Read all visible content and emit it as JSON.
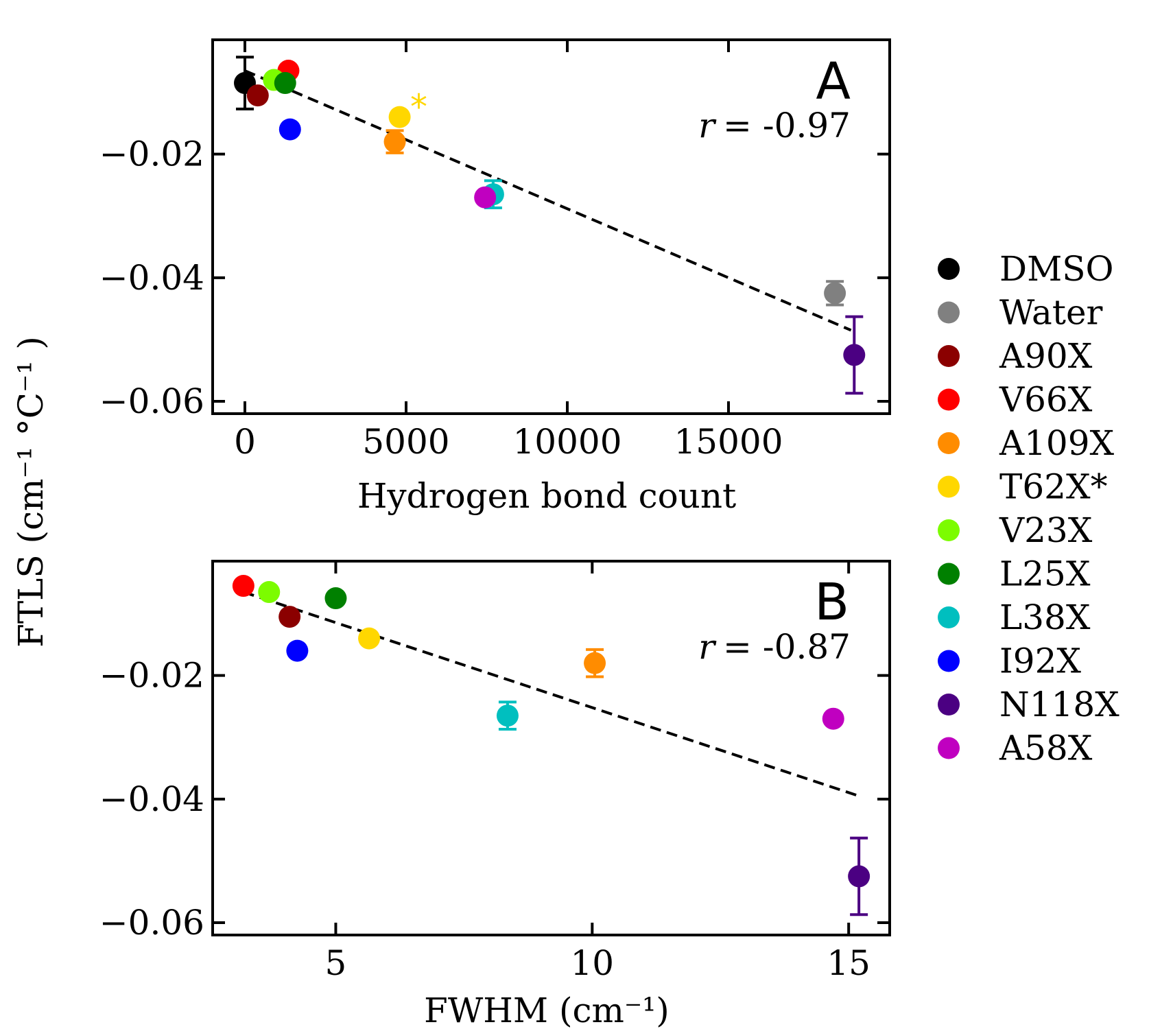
{
  "legend": [
    {
      "name": "DMSO",
      "color": "#000000"
    },
    {
      "name": "Water",
      "color": "#808080"
    },
    {
      "name": "A90X",
      "color": "#8b0000"
    },
    {
      "name": "V66X",
      "color": "#ff0000"
    },
    {
      "name": "A109X",
      "color": "#ff8c00"
    },
    {
      "name": "T62X*",
      "color": "#ffd700"
    },
    {
      "name": "V23X",
      "color": "#7cfc00"
    },
    {
      "name": "L25X",
      "color": "#008000"
    },
    {
      "name": "L38X",
      "color": "#00bfbf"
    },
    {
      "name": "I92X",
      "color": "#0000ff"
    },
    {
      "name": "N118X",
      "color": "#4b0082"
    },
    {
      "name": "A58X",
      "color": "#c000c0"
    }
  ],
  "shared_ylabel": "FTLS (cm⁻¹ °C⁻¹ )",
  "chart_data": [
    {
      "type": "scatter",
      "panel_label": "A",
      "annotation": "r = -0.97",
      "r_symbol": "r",
      "r_value": "= -0.97",
      "xlabel": "Hydrogen bond count",
      "xlim": [
        -1000,
        20000
      ],
      "ylim": [
        -0.062,
        -0.0015
      ],
      "xticks": [
        0,
        5000,
        10000,
        15000
      ],
      "xtick_labels": [
        "0",
        "5000",
        "10000",
        "15000"
      ],
      "yticks": [
        -0.02,
        -0.04,
        -0.06
      ],
      "ytick_labels": [
        "−0.02",
        "−0.04",
        "−0.06"
      ],
      "fit_line": {
        "x": [
          0,
          18800
        ],
        "y": [
          -0.0065,
          -0.0485
        ],
        "style": "dashed"
      },
      "starred_point": {
        "series": "T62X*",
        "mark": "*"
      },
      "points": [
        {
          "series": "DMSO",
          "x": 0,
          "y": -0.0085,
          "err": 0.0042
        },
        {
          "series": "Water",
          "x": 18300,
          "y": -0.0425,
          "err": 0.0019
        },
        {
          "series": "A90X",
          "x": 400,
          "y": -0.0105,
          "err": 0
        },
        {
          "series": "V66X",
          "x": 1350,
          "y": -0.0065,
          "err": 0
        },
        {
          "series": "A109X",
          "x": 4650,
          "y": -0.018,
          "err": 0.0018
        },
        {
          "series": "T62X*",
          "x": 4800,
          "y": -0.014,
          "err": 0
        },
        {
          "series": "V23X",
          "x": 900,
          "y": -0.008,
          "err": 0
        },
        {
          "series": "L25X",
          "x": 1250,
          "y": -0.0085,
          "err": 0
        },
        {
          "series": "L38X",
          "x": 7700,
          "y": -0.0265,
          "err": 0.0022
        },
        {
          "series": "I92X",
          "x": 1400,
          "y": -0.016,
          "err": 0
        },
        {
          "series": "N118X",
          "x": 18900,
          "y": -0.0525,
          "err": 0.0062
        },
        {
          "series": "A58X",
          "x": 7450,
          "y": -0.027,
          "err": 0
        }
      ]
    },
    {
      "type": "scatter",
      "panel_label": "B",
      "annotation": "r = -0.87",
      "r_symbol": "r",
      "r_value": "= -0.87",
      "xlabel": "FWHM (cm⁻¹)",
      "xlim": [
        2.6,
        15.8
      ],
      "ylim": [
        -0.062,
        -0.0015
      ],
      "xticks": [
        5,
        10,
        15
      ],
      "xtick_labels": [
        "5",
        "10",
        "15"
      ],
      "yticks": [
        -0.02,
        -0.04,
        -0.06
      ],
      "ytick_labels": [
        "−0.02",
        "−0.04",
        "−0.06"
      ],
      "fit_line": {
        "x": [
          3.2,
          15.2
        ],
        "y": [
          -0.0065,
          -0.0395
        ],
        "style": "dashed"
      },
      "points": [
        {
          "series": "V66X",
          "x": 3.2,
          "y": -0.0055,
          "err": 0
        },
        {
          "series": "V23X",
          "x": 3.7,
          "y": -0.0065,
          "err": 0
        },
        {
          "series": "A90X",
          "x": 4.1,
          "y": -0.0105,
          "err": 0
        },
        {
          "series": "L25X",
          "x": 5.0,
          "y": -0.0075,
          "err": 0
        },
        {
          "series": "I92X",
          "x": 4.25,
          "y": -0.016,
          "err": 0
        },
        {
          "series": "T62X*",
          "x": 5.65,
          "y": -0.014,
          "err": 0
        },
        {
          "series": "A109X",
          "x": 10.05,
          "y": -0.018,
          "err": 0.0022
        },
        {
          "series": "L38X",
          "x": 8.35,
          "y": -0.0265,
          "err": 0.0022
        },
        {
          "series": "A58X",
          "x": 14.7,
          "y": -0.027,
          "err": 0
        },
        {
          "series": "N118X",
          "x": 15.2,
          "y": -0.0525,
          "err": 0.0062
        }
      ]
    }
  ]
}
